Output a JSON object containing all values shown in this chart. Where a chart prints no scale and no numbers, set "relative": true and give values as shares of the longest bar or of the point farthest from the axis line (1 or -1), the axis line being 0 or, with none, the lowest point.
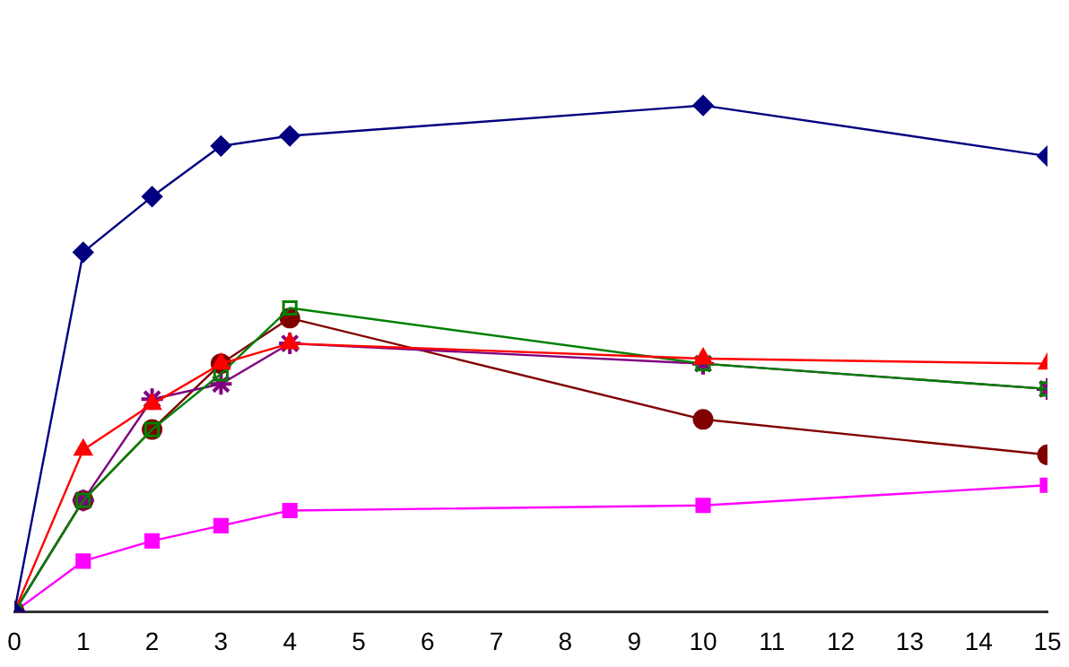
{
  "chart_data": {
    "type": "line",
    "relative": true,
    "x": [
      0,
      1,
      2,
      3,
      4,
      10,
      15
    ],
    "xlim": [
      0,
      15
    ],
    "xticks": [
      0,
      1,
      2,
      3,
      4,
      5,
      6,
      7,
      8,
      9,
      10,
      11,
      12,
      13,
      14,
      15
    ],
    "grid": false,
    "legend": false,
    "series": [
      {
        "color": "#000080",
        "marker": "diamond",
        "values": [
          0,
          0.71,
          0.82,
          0.92,
          0.94,
          1,
          0.9
        ]
      },
      {
        "color": "#ff0000",
        "marker": "triangle",
        "values": [
          0,
          0.32,
          0.41,
          0.49,
          0.53,
          0.5,
          0.49
        ]
      },
      {
        "color": "#008000",
        "marker": "square",
        "values": [
          0,
          0.22,
          0.36,
          0.47,
          0.6,
          0.49,
          0.44
        ]
      },
      {
        "color": "#800080",
        "marker": "cross",
        "values": [
          0,
          0.22,
          0.42,
          0.45,
          0.53,
          0.49,
          0.44
        ]
      },
      {
        "color": "#800000",
        "marker": "circle",
        "values": [
          0,
          0.22,
          0.36,
          0.49,
          0.58,
          0.38,
          0.31
        ]
      },
      {
        "color": "#ff00ff",
        "marker": "square",
        "values": [
          0,
          0.1,
          0.14,
          0.17,
          0.2,
          0.21,
          0.25
        ]
      }
    ]
  }
}
